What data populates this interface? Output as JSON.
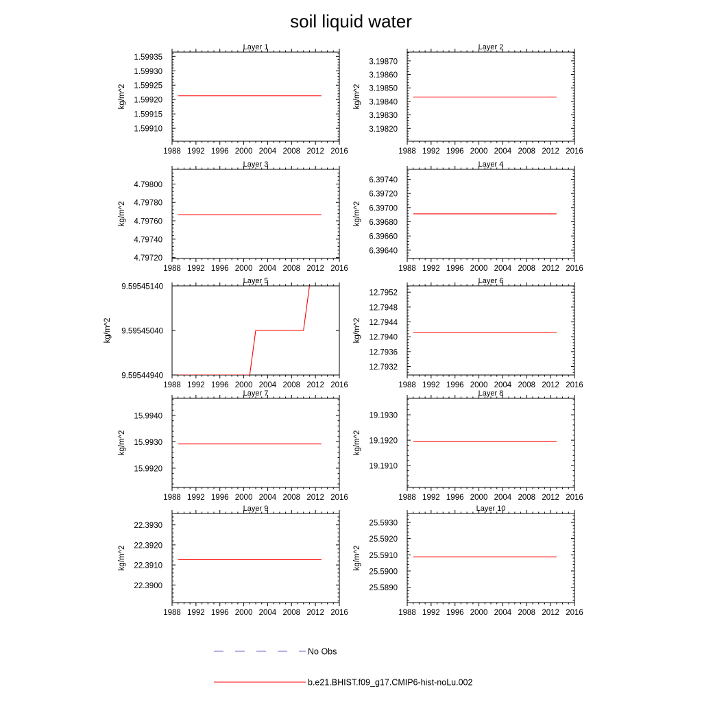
{
  "figure": {
    "title": "soil liquid water",
    "legend": [
      {
        "label": "No Obs",
        "color": "#6666cc",
        "dash": true
      },
      {
        "label": "b.e21.BHIST.f09_g17.CMIP6-hist-noLu.002",
        "color": "#ff0000",
        "dash": false
      }
    ],
    "colors": {
      "model": "#ff0000",
      "obs": "#6666cc",
      "axis": "#000000"
    }
  },
  "chart_data": [
    {
      "type": "line",
      "title": "Layer 1",
      "ylabel": "kg/m^2",
      "xlim": [
        1988,
        2016
      ],
      "ylim": [
        1.599055,
        1.599365
      ],
      "xticks": [
        1988,
        1992,
        1996,
        2000,
        2004,
        2008,
        2012,
        2016
      ],
      "yticks": [
        "1.59910",
        "1.59915",
        "1.59920",
        "1.59925",
        "1.59930",
        "1.59935"
      ],
      "ytick_values": [
        1.5991,
        1.59915,
        1.5992,
        1.59925,
        1.5993,
        1.59935
      ],
      "series": [
        {
          "x": [
            1989,
            2013
          ],
          "y": [
            1.599213,
            1.599213
          ]
        }
      ]
    },
    {
      "type": "line",
      "title": "Layer 2",
      "ylabel": "kg/m^2",
      "xlim": [
        1988,
        2016
      ],
      "ylim": [
        3.198105,
        3.198765
      ],
      "xticks": [
        1988,
        1992,
        1996,
        2000,
        2004,
        2008,
        2012,
        2016
      ],
      "yticks": [
        "3.19820",
        "3.19830",
        "3.19840",
        "3.19850",
        "3.19860",
        "3.19870"
      ],
      "ytick_values": [
        3.1982,
        3.1983,
        3.1984,
        3.1985,
        3.1986,
        3.1987
      ],
      "series": [
        {
          "x": [
            1989,
            2013
          ],
          "y": [
            3.198432,
            3.198432
          ]
        }
      ]
    },
    {
      "type": "line",
      "title": "Layer 3",
      "ylabel": "kg/m^2",
      "xlim": [
        1988,
        2016
      ],
      "ylim": [
        4.79719,
        4.79816
      ],
      "xticks": [
        1988,
        1992,
        1996,
        2000,
        2004,
        2008,
        2012,
        2016
      ],
      "yticks": [
        "4.79720",
        "4.79740",
        "4.79760",
        "4.79780",
        "4.79800"
      ],
      "ytick_values": [
        4.7972,
        4.7974,
        4.7976,
        4.7978,
        4.798
      ],
      "series": [
        {
          "x": [
            1989,
            2013
          ],
          "y": [
            4.797665,
            4.797665
          ]
        }
      ]
    },
    {
      "type": "line",
      "title": "Layer 4",
      "ylabel": "kg/m^2",
      "xlim": [
        1988,
        2016
      ],
      "ylim": [
        6.396283,
        6.39754
      ],
      "xticks": [
        1988,
        1992,
        1996,
        2000,
        2004,
        2008,
        2012,
        2016
      ],
      "yticks": [
        "6.39640",
        "6.39660",
        "6.39680",
        "6.39700",
        "6.39720",
        "6.39740"
      ],
      "ytick_values": [
        6.3964,
        6.3966,
        6.3968,
        6.397,
        6.3972,
        6.3974
      ],
      "series": [
        {
          "x": [
            1989,
            2013
          ],
          "y": [
            6.396912,
            6.396912
          ]
        }
      ]
    },
    {
      "type": "line",
      "title": "Layer 5",
      "ylabel": "kg/m^2",
      "xlim": [
        1988,
        2016
      ],
      "ylim": [
        9.5954494,
        9.5954514
      ],
      "xticks": [
        1988,
        1992,
        1996,
        2000,
        2004,
        2008,
        2012,
        2016
      ],
      "yticks": [
        "9.59544940",
        "9.59545040",
        "9.59545140"
      ],
      "ytick_values": [
        9.5954494,
        9.5954504,
        9.5954514
      ],
      "series": [
        {
          "x": [
            1989,
            2001,
            2002,
            2010,
            2011
          ],
          "y": [
            9.5954494,
            9.5954494,
            9.5954504,
            9.5954504,
            9.5954514
          ]
        }
      ]
    },
    {
      "type": "line",
      "title": "Layer 6",
      "ylabel": "kg/m^2",
      "xlim": [
        1988,
        2016
      ],
      "ylim": [
        12.79297,
        12.79537
      ],
      "xticks": [
        1988,
        1992,
        1996,
        2000,
        2004,
        2008,
        2012,
        2016
      ],
      "yticks": [
        "12.7932",
        "12.7936",
        "12.7940",
        "12.7944",
        "12.7948",
        "12.7952"
      ],
      "ytick_values": [
        12.7932,
        12.7936,
        12.794,
        12.7944,
        12.7948,
        12.7952
      ],
      "series": [
        {
          "x": [
            1989,
            2013
          ],
          "y": [
            12.79411,
            12.79411
          ]
        }
      ]
    },
    {
      "type": "line",
      "title": "Layer 7",
      "ylabel": "kg/m^2",
      "xlim": [
        1988,
        2016
      ],
      "ylim": [
        15.99127,
        15.99465
      ],
      "xticks": [
        1988,
        1992,
        1996,
        2000,
        2004,
        2008,
        2012,
        2016
      ],
      "yticks": [
        "15.9920",
        "15.9930",
        "15.9940"
      ],
      "ytick_values": [
        15.992,
        15.993,
        15.994
      ],
      "series": [
        {
          "x": [
            1989,
            2013
          ],
          "y": [
            15.99292,
            15.99292
          ]
        }
      ]
    },
    {
      "type": "line",
      "title": "Layer 8",
      "ylabel": "kg/m^2",
      "xlim": [
        1988,
        2016
      ],
      "ylim": [
        19.19014,
        19.19365
      ],
      "xticks": [
        1988,
        1992,
        1996,
        2000,
        2004,
        2008,
        2012,
        2016
      ],
      "yticks": [
        "19.1910",
        "19.1920",
        "19.1930"
      ],
      "ytick_values": [
        19.191,
        19.192,
        19.193
      ],
      "series": [
        {
          "x": [
            1989,
            2013
          ],
          "y": [
            19.19196,
            19.19196
          ]
        }
      ]
    },
    {
      "type": "line",
      "title": "Layer 9",
      "ylabel": "kg/m^2",
      "xlim": [
        1988,
        2016
      ],
      "ylim": [
        22.38912,
        22.39357
      ],
      "xticks": [
        1988,
        1992,
        1996,
        2000,
        2004,
        2008,
        2012,
        2016
      ],
      "yticks": [
        "22.3900",
        "22.3910",
        "22.3920",
        "22.3930"
      ],
      "ytick_values": [
        22.39,
        22.391,
        22.392,
        22.393
      ],
      "series": [
        {
          "x": [
            1989,
            2013
          ],
          "y": [
            22.39126,
            22.39126
          ]
        }
      ]
    },
    {
      "type": "line",
      "title": "Layer 10",
      "ylabel": "kg/m^2",
      "xlim": [
        1988,
        2016
      ],
      "ylim": [
        25.58805,
        25.59355
      ],
      "xticks": [
        1988,
        1992,
        1996,
        2000,
        2004,
        2008,
        2012,
        2016
      ],
      "yticks": [
        "25.5890",
        "25.5900",
        "25.5910",
        "25.5920",
        "25.5930"
      ],
      "ytick_values": [
        25.589,
        25.59,
        25.591,
        25.592,
        25.593
      ],
      "series": [
        {
          "x": [
            1989,
            2013
          ],
          "y": [
            25.59087,
            25.59087
          ]
        }
      ]
    }
  ]
}
